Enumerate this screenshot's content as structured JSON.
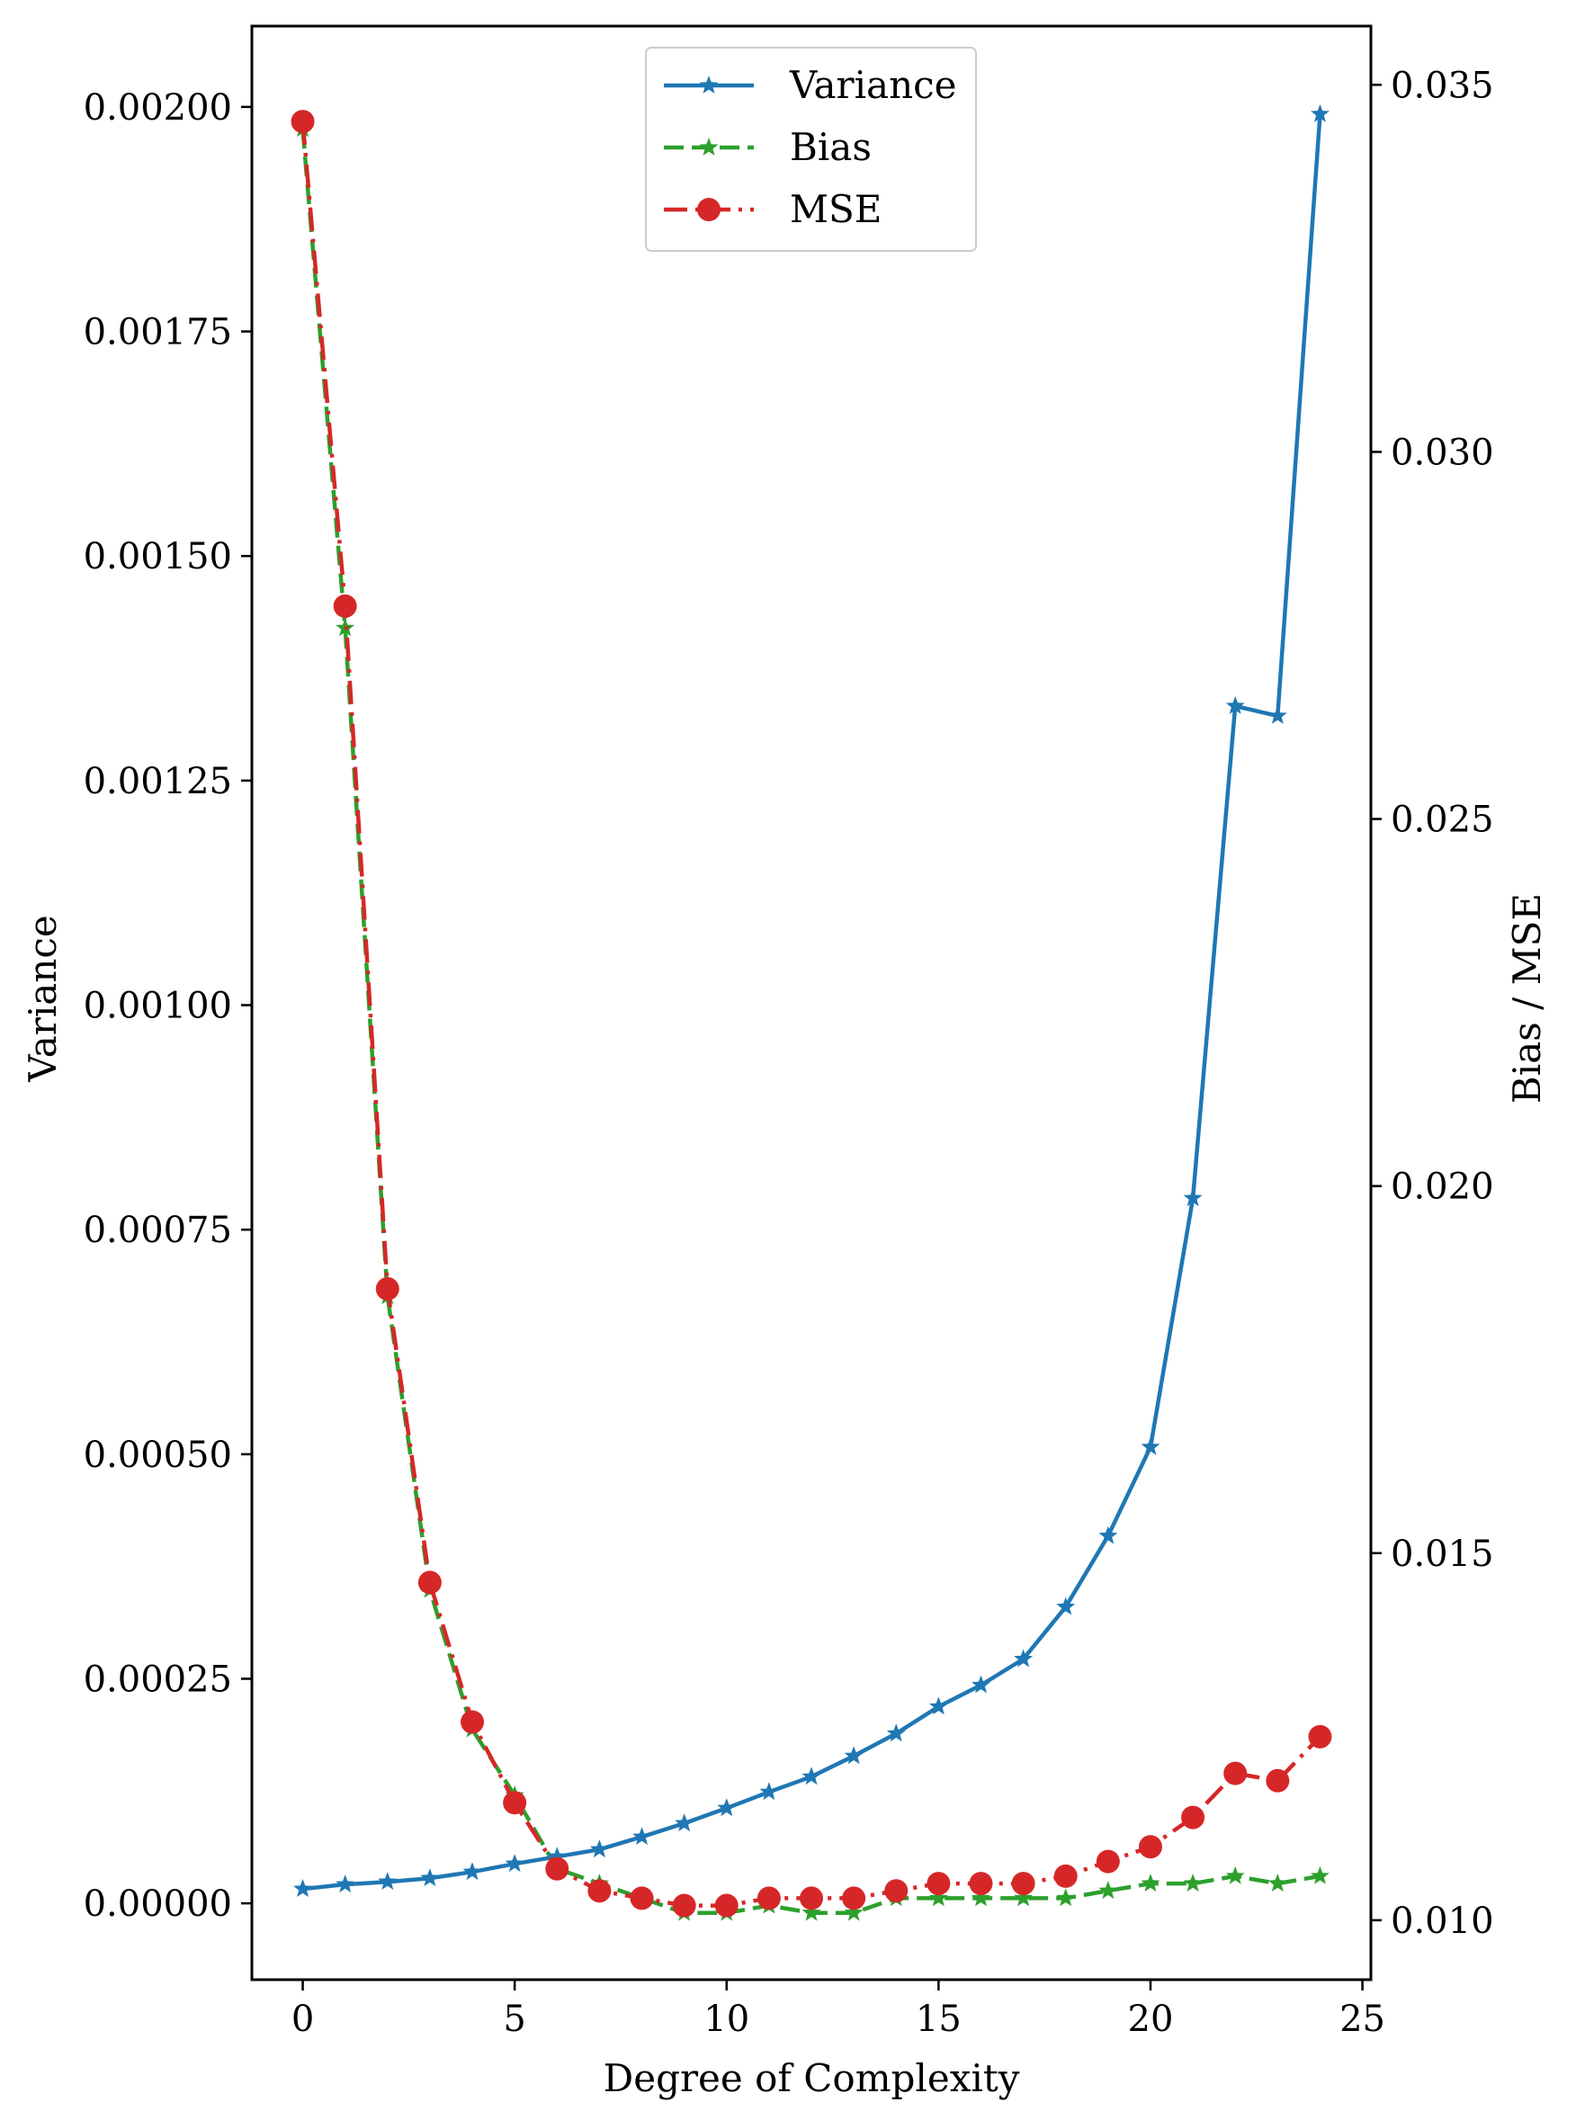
{
  "chart_data": {
    "type": "line",
    "title": "",
    "xlabel": "Degree of Complexity",
    "ylabel_left": "Variance",
    "ylabel_right": "Bias / MSE",
    "xlim": [
      -1.2,
      25.2
    ],
    "ylim_left": [
      -8.5e-05,
      0.00209
    ],
    "ylim_right": [
      0.00919,
      0.0358
    ],
    "grid": false,
    "legend_position": "top-center",
    "x_ticks": [
      0,
      5,
      10,
      15,
      20,
      25
    ],
    "x_tick_labels": [
      "0",
      "5",
      "10",
      "15",
      "20",
      "25"
    ],
    "y_left_ticks": [
      0,
      0.00025,
      0.0005,
      0.00075,
      0.001,
      0.00125,
      0.0015,
      0.00175,
      0.002
    ],
    "y_left_tick_labels": [
      "0.00000",
      "0.00025",
      "0.00050",
      "0.00075",
      "0.00100",
      "0.00125",
      "0.00150",
      "0.00175",
      "0.00200"
    ],
    "y_right_ticks": [
      0.01,
      0.015,
      0.02,
      0.025,
      0.03,
      0.035
    ],
    "y_right_tick_labels": [
      "0.010",
      "0.015",
      "0.020",
      "0.025",
      "0.030",
      "0.035"
    ],
    "x": [
      0,
      1,
      2,
      3,
      4,
      5,
      6,
      7,
      8,
      9,
      10,
      11,
      12,
      13,
      14,
      15,
      16,
      17,
      18,
      19,
      20,
      21,
      22,
      23,
      24
    ],
    "series": [
      {
        "name": "Variance",
        "axis": "left",
        "color": "#1f77b4",
        "marker": "star",
        "linestyle": "solid",
        "values": [
          1.6e-05,
          2.1e-05,
          2.4e-05,
          2.8e-05,
          3.5e-05,
          4.4e-05,
          5.2e-05,
          6e-05,
          7.4e-05,
          8.9e-05,
          0.000106,
          0.000124,
          0.000141,
          0.000164,
          0.000189,
          0.000219,
          0.000243,
          0.000272,
          0.00033,
          0.000409,
          0.000508,
          0.000785,
          0.001333,
          0.001322,
          0.001992
        ]
      },
      {
        "name": "Bias",
        "axis": "right",
        "color": "#2ca02c",
        "marker": "star",
        "linestyle": "dashed",
        "values": [
          0.0344,
          0.0276,
          0.0185,
          0.0145,
          0.0126,
          0.0117,
          0.0107,
          0.0105,
          0.0103,
          0.0101,
          0.0101,
          0.0102,
          0.0101,
          0.0101,
          0.0103,
          0.0103,
          0.0103,
          0.0103,
          0.0103,
          0.0104,
          0.0105,
          0.0105,
          0.0106,
          0.0105,
          0.0106
        ]
      },
      {
        "name": "MSE",
        "axis": "right",
        "color": "#d62728",
        "marker": "circle",
        "linestyle": "dashdot",
        "values": [
          0.0345,
          0.0279,
          0.0186,
          0.0146,
          0.0127,
          0.0116,
          0.0107,
          0.0104,
          0.0103,
          0.0102,
          0.0102,
          0.0103,
          0.0103,
          0.0103,
          0.0104,
          0.0105,
          0.0105,
          0.0105,
          0.0106,
          0.0108,
          0.011,
          0.0114,
          0.012,
          0.0119,
          0.0125
        ]
      }
    ]
  }
}
